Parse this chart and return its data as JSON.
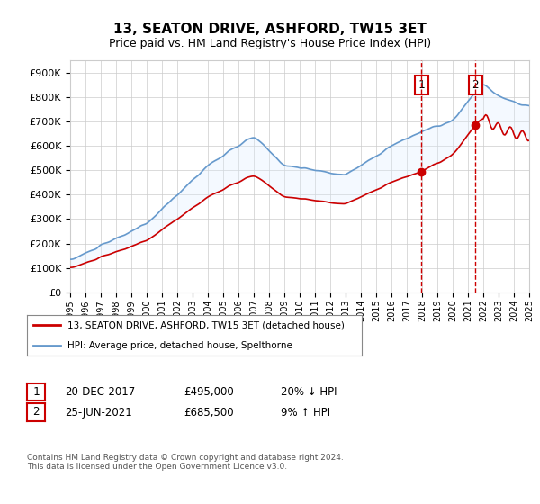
{
  "title": "13, SEATON DRIVE, ASHFORD, TW15 3ET",
  "subtitle": "Price paid vs. HM Land Registry's House Price Index (HPI)",
  "ylabel_values": [
    "£0",
    "£100K",
    "£200K",
    "£300K",
    "£400K",
    "£500K",
    "£600K",
    "£700K",
    "£800K",
    "£900K"
  ],
  "ylim": [
    0,
    950000
  ],
  "yticks": [
    0,
    100000,
    200000,
    300000,
    400000,
    500000,
    600000,
    700000,
    800000,
    900000
  ],
  "sale1_date": 2017.97,
  "sale1_price": 495000,
  "sale1_label": "1",
  "sale1_text": "20-DEC-2017    £495,000    20% ↓ HPI",
  "sale2_date": 2021.48,
  "sale2_price": 685500,
  "sale2_label": "2",
  "sale2_text": "25-JUN-2021    £685,500    9% ↑ HPI",
  "legend_line1": "13, SEATON DRIVE, ASHFORD, TW15 3ET (detached house)",
  "legend_line2": "HPI: Average price, detached house, Spelthorne",
  "footer": "Contains HM Land Registry data © Crown copyright and database right 2024.\nThis data is licensed under the Open Government Licence v3.0.",
  "line_color_red": "#cc0000",
  "line_color_blue": "#6699cc",
  "shade_color": "#ddeeff",
  "background_color": "#ffffff",
  "grid_color": "#cccccc",
  "sale_box_color": "#cc0000",
  "sale_vline_color": "#cc0000",
  "xstart": 1995,
  "xend": 2025
}
